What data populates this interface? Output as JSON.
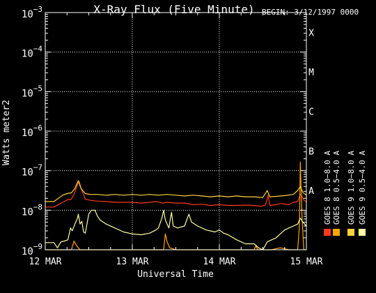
{
  "chart_data": {
    "type": "line",
    "title": "X-Ray Flux (Five Minute)",
    "begin_label": "BEGIN: 3/12/1997 0000",
    "xlabel": "Universal Time",
    "ylabel": "Watts meter2",
    "y_scale": "log",
    "ylim": [
      1e-09,
      0.001
    ],
    "xlim": [
      0,
      3
    ],
    "x_units": "days since 12 MAR 1997 0000 UT",
    "x_ticks": [
      {
        "x": 0,
        "label": "12 MAR"
      },
      {
        "x": 1,
        "label": "13 MAR"
      },
      {
        "x": 2,
        "label": "14 MAR"
      },
      {
        "x": 3,
        "label": "15 MAR"
      }
    ],
    "y_ticks": [
      {
        "exp": -9,
        "base": "10",
        "sup": "−9"
      },
      {
        "exp": -8,
        "base": "10",
        "sup": "−8"
      },
      {
        "exp": -7,
        "base": "10",
        "sup": "−7"
      },
      {
        "exp": -6,
        "base": "10",
        "sup": "−6"
      },
      {
        "exp": -5,
        "base": "10",
        "sup": "−5"
      },
      {
        "exp": -4,
        "base": "10",
        "sup": "−4"
      },
      {
        "exp": -3,
        "base": "10",
        "sup": "−3"
      }
    ],
    "flare_classes": [
      {
        "label": "A",
        "exp": -7.5
      },
      {
        "label": "B",
        "exp": -6.5
      },
      {
        "label": "C",
        "exp": -5.5
      },
      {
        "label": "M",
        "exp": -4.5
      },
      {
        "label": "X",
        "exp": -3.5
      }
    ],
    "grid": {
      "dotted_vertical_days": [
        1,
        2,
        3
      ],
      "dotted_horizontal_exps": [
        -8,
        -7,
        -6,
        -5,
        -4
      ]
    },
    "legend_placement": "right",
    "series": [
      {
        "name": "GOES 8 1.0−8.0 A",
        "color": "#ff3a1a",
        "points": [
          [
            0.0,
            -7.92
          ],
          [
            0.1,
            -7.92
          ],
          [
            0.2,
            -7.8
          ],
          [
            0.25,
            -7.74
          ],
          [
            0.3,
            -7.72
          ],
          [
            0.33,
            -7.6
          ],
          [
            0.37,
            -7.35
          ],
          [
            0.39,
            -7.28
          ],
          [
            0.42,
            -7.5
          ],
          [
            0.46,
            -7.72
          ],
          [
            0.52,
            -7.75
          ],
          [
            0.6,
            -7.77
          ],
          [
            0.7,
            -7.78
          ],
          [
            0.8,
            -7.8
          ],
          [
            0.9,
            -7.8
          ],
          [
            1.0,
            -7.8
          ],
          [
            1.1,
            -7.82
          ],
          [
            1.2,
            -7.8
          ],
          [
            1.28,
            -7.78
          ],
          [
            1.35,
            -7.82
          ],
          [
            1.4,
            -7.8
          ],
          [
            1.5,
            -7.82
          ],
          [
            1.6,
            -7.82
          ],
          [
            1.7,
            -7.86
          ],
          [
            1.8,
            -7.85
          ],
          [
            1.9,
            -7.88
          ],
          [
            2.0,
            -7.86
          ],
          [
            2.1,
            -7.88
          ],
          [
            2.2,
            -7.88
          ],
          [
            2.3,
            -7.87
          ],
          [
            2.4,
            -7.88
          ],
          [
            2.48,
            -7.9
          ],
          [
            2.53,
            -7.87
          ],
          [
            2.56,
            -7.62
          ],
          [
            2.58,
            -7.88
          ],
          [
            2.65,
            -7.86
          ],
          [
            2.7,
            -7.83
          ],
          [
            2.8,
            -7.86
          ],
          [
            2.85,
            -7.8
          ],
          [
            2.9,
            -7.78
          ],
          [
            2.93,
            -7.6
          ],
          [
            2.95,
            -7.65
          ],
          [
            2.97,
            -7.75
          ],
          [
            3.0,
            -7.78
          ]
        ]
      },
      {
        "name": "GOES 8 0.5−4.0 A",
        "color": "#ffa500",
        "points": [
          [
            0.0,
            -9.0
          ],
          [
            0.3,
            -9.0
          ],
          [
            0.33,
            -8.78
          ],
          [
            0.36,
            -8.9
          ],
          [
            0.4,
            -9.0
          ],
          [
            0.7,
            -9.0
          ],
          [
            1.2,
            -9.0
          ],
          [
            1.36,
            -9.0
          ],
          [
            1.38,
            -8.6
          ],
          [
            1.4,
            -8.8
          ],
          [
            1.43,
            -8.95
          ],
          [
            1.5,
            -9.0
          ],
          [
            2.0,
            -9.0
          ],
          [
            2.4,
            -9.0
          ],
          [
            2.42,
            -8.9
          ],
          [
            2.44,
            -9.0
          ],
          [
            2.6,
            -9.0
          ],
          [
            2.7,
            -8.95
          ],
          [
            2.8,
            -9.0
          ],
          [
            2.9,
            -9.0
          ],
          [
            2.92,
            -8.4
          ],
          [
            2.93,
            -6.78
          ],
          [
            2.95,
            -8.2
          ],
          [
            2.97,
            -9.0
          ],
          [
            3.0,
            -9.0
          ]
        ]
      },
      {
        "name": "GOES 9 1.0−8.0 A",
        "color": "#ffd23a",
        "points": [
          [
            0.0,
            -7.78
          ],
          [
            0.1,
            -7.78
          ],
          [
            0.2,
            -7.62
          ],
          [
            0.25,
            -7.58
          ],
          [
            0.3,
            -7.56
          ],
          [
            0.34,
            -7.45
          ],
          [
            0.38,
            -7.25
          ],
          [
            0.41,
            -7.45
          ],
          [
            0.46,
            -7.58
          ],
          [
            0.52,
            -7.6
          ],
          [
            0.6,
            -7.6
          ],
          [
            0.7,
            -7.62
          ],
          [
            0.8,
            -7.6
          ],
          [
            0.9,
            -7.62
          ],
          [
            1.0,
            -7.6
          ],
          [
            1.1,
            -7.62
          ],
          [
            1.2,
            -7.6
          ],
          [
            1.3,
            -7.62
          ],
          [
            1.4,
            -7.6
          ],
          [
            1.5,
            -7.62
          ],
          [
            1.6,
            -7.64
          ],
          [
            1.7,
            -7.62
          ],
          [
            1.8,
            -7.64
          ],
          [
            1.9,
            -7.66
          ],
          [
            2.0,
            -7.64
          ],
          [
            2.1,
            -7.66
          ],
          [
            2.2,
            -7.64
          ],
          [
            2.3,
            -7.66
          ],
          [
            2.4,
            -7.66
          ],
          [
            2.5,
            -7.68
          ],
          [
            2.55,
            -7.5
          ],
          [
            2.58,
            -7.66
          ],
          [
            2.65,
            -7.65
          ],
          [
            2.75,
            -7.63
          ],
          [
            2.85,
            -7.6
          ],
          [
            2.9,
            -7.5
          ],
          [
            2.93,
            -7.4
          ],
          [
            2.96,
            -7.55
          ],
          [
            3.0,
            -7.62
          ]
        ]
      },
      {
        "name": "GOES 9 0.5−4.0 A",
        "color": "#ffffa0",
        "points": [
          [
            0.0,
            -8.82
          ],
          [
            0.05,
            -8.82
          ],
          [
            0.1,
            -8.82
          ],
          [
            0.14,
            -8.95
          ],
          [
            0.18,
            -8.8
          ],
          [
            0.22,
            -8.78
          ],
          [
            0.26,
            -8.75
          ],
          [
            0.29,
            -8.45
          ],
          [
            0.31,
            -8.52
          ],
          [
            0.34,
            -8.35
          ],
          [
            0.37,
            -8.2
          ],
          [
            0.38,
            -8.1
          ],
          [
            0.4,
            -8.35
          ],
          [
            0.42,
            -8.28
          ],
          [
            0.44,
            -8.55
          ],
          [
            0.46,
            -8.58
          ],
          [
            0.5,
            -8.1
          ],
          [
            0.53,
            -8.0
          ],
          [
            0.57,
            -8.0
          ],
          [
            0.6,
            -8.15
          ],
          [
            0.63,
            -8.25
          ],
          [
            0.7,
            -8.35
          ],
          [
            0.8,
            -8.45
          ],
          [
            0.9,
            -8.55
          ],
          [
            1.0,
            -8.6
          ],
          [
            1.1,
            -8.62
          ],
          [
            1.2,
            -8.58
          ],
          [
            1.27,
            -8.5
          ],
          [
            1.3,
            -8.45
          ],
          [
            1.34,
            -8.2
          ],
          [
            1.36,
            -8.0
          ],
          [
            1.38,
            -8.25
          ],
          [
            1.42,
            -8.45
          ],
          [
            1.45,
            -8.05
          ],
          [
            1.47,
            -8.4
          ],
          [
            1.52,
            -8.45
          ],
          [
            1.6,
            -8.4
          ],
          [
            1.65,
            -8.1
          ],
          [
            1.68,
            -8.3
          ],
          [
            1.75,
            -8.4
          ],
          [
            1.85,
            -8.5
          ],
          [
            1.95,
            -8.55
          ],
          [
            2.0,
            -8.5
          ],
          [
            2.05,
            -8.58
          ],
          [
            2.1,
            -8.62
          ],
          [
            2.2,
            -8.75
          ],
          [
            2.3,
            -8.85
          ],
          [
            2.35,
            -8.85
          ],
          [
            2.4,
            -8.85
          ],
          [
            2.45,
            -8.95
          ],
          [
            2.5,
            -9.0
          ],
          [
            2.55,
            -8.8
          ],
          [
            2.6,
            -8.75
          ],
          [
            2.65,
            -8.7
          ],
          [
            2.7,
            -8.6
          ],
          [
            2.75,
            -8.5
          ],
          [
            2.8,
            -8.45
          ],
          [
            2.85,
            -8.4
          ],
          [
            2.9,
            -8.35
          ],
          [
            2.93,
            -8.2
          ],
          [
            2.96,
            -8.3
          ],
          [
            3.0,
            -8.4
          ]
        ]
      }
    ]
  }
}
